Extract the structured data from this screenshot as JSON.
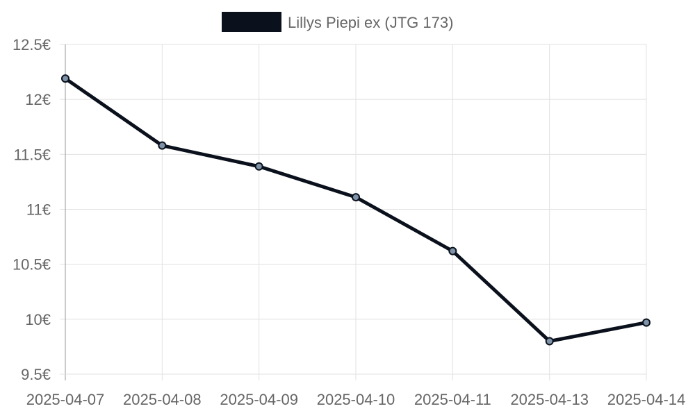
{
  "chart_data": {
    "type": "line",
    "x": [
      "2025-04-07",
      "2025-04-08",
      "2025-04-09",
      "2025-04-10",
      "2025-04-11",
      "2025-04-13",
      "2025-04-14"
    ],
    "series": [
      {
        "name": "Lillys Piepi ex (JTG 173)",
        "values": [
          12.19,
          11.58,
          11.39,
          11.11,
          10.62,
          9.8,
          9.97
        ],
        "color": "#0b111c",
        "point_fill": "#7f93a8"
      }
    ],
    "y_ticks": [
      {
        "value": 12.5,
        "label": "12.5€"
      },
      {
        "value": 12.0,
        "label": "12€"
      },
      {
        "value": 11.5,
        "label": "11.5€"
      },
      {
        "value": 11.0,
        "label": "11€"
      },
      {
        "value": 10.5,
        "label": "10.5€"
      },
      {
        "value": 10.0,
        "label": "10€"
      },
      {
        "value": 9.5,
        "label": "9.5€"
      }
    ],
    "ylim": [
      9.5,
      12.5
    ],
    "grid": true,
    "legend_position": "top",
    "title": "",
    "xlabel": "",
    "ylabel": ""
  }
}
